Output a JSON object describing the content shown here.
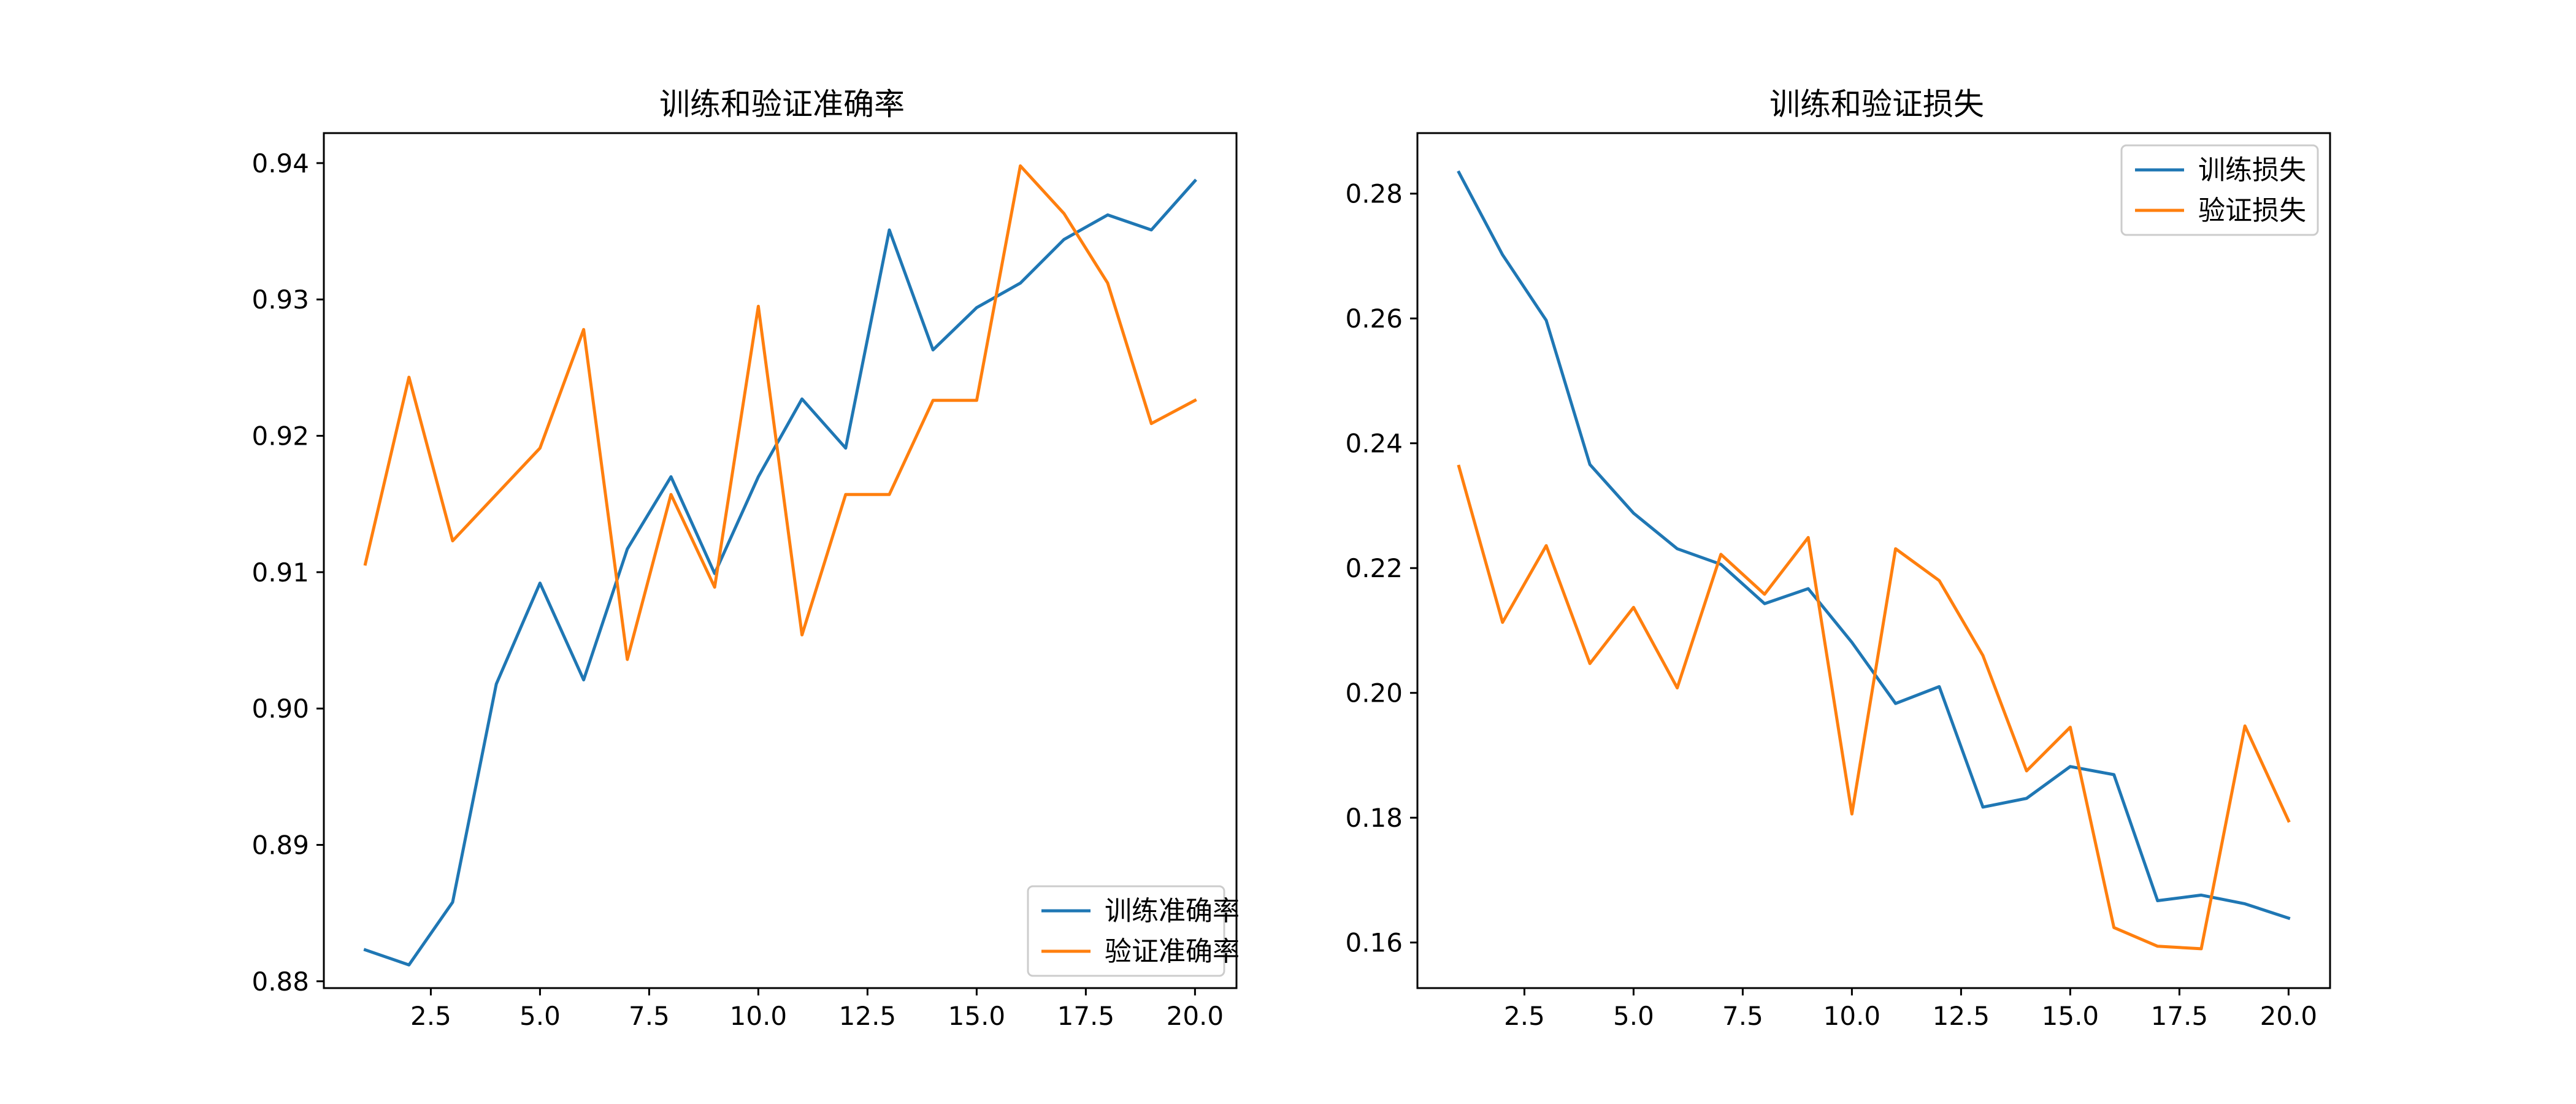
{
  "figure": {
    "background": "#ffffff"
  },
  "chart_data": [
    {
      "type": "line",
      "title": "训练和验证准确率",
      "xlabel": "",
      "ylabel": "",
      "xlim": [
        0.05,
        20.95
      ],
      "ylim": [
        0.8795,
        0.9422
      ],
      "xticks": [
        2.5,
        5.0,
        7.5,
        10.0,
        12.5,
        15.0,
        17.5,
        20.0
      ],
      "xtick_labels": [
        "2.5",
        "5.0",
        "7.5",
        "10.0",
        "12.5",
        "15.0",
        "17.5",
        "20.0"
      ],
      "yticks": [
        0.88,
        0.89,
        0.9,
        0.91,
        0.92,
        0.93,
        0.94
      ],
      "ytick_labels": [
        "0.88",
        "0.89",
        "0.90",
        "0.91",
        "0.92",
        "0.93",
        "0.94"
      ],
      "grid": false,
      "legend_position": "bottom-right",
      "x": [
        1,
        2,
        3,
        4,
        5,
        6,
        7,
        8,
        9,
        10,
        11,
        12,
        13,
        14,
        15,
        16,
        17,
        18,
        19,
        20
      ],
      "series": [
        {
          "name": "训练准确率",
          "color": "#1f77b4",
          "values": [
            0.8823,
            0.8812,
            0.8858,
            0.9018,
            0.9092,
            0.9021,
            0.9117,
            0.917,
            0.9099,
            0.917,
            0.9227,
            0.9191,
            0.9351,
            0.9263,
            0.9294,
            0.9312,
            0.9344,
            0.9362,
            0.9351,
            0.9387
          ]
        },
        {
          "name": "验证准确率",
          "color": "#ff7f0e",
          "values": [
            0.9106,
            0.9243,
            0.9123,
            0.9157,
            0.9191,
            0.9278,
            0.9036,
            0.9157,
            0.9089,
            0.9295,
            0.9054,
            0.9157,
            0.9157,
            0.9226,
            0.9226,
            0.9398,
            0.9363,
            0.9312,
            0.9209,
            0.9226
          ]
        }
      ]
    },
    {
      "type": "line",
      "title": "训练和验证损失",
      "xlabel": "",
      "ylabel": "",
      "xlim": [
        0.05,
        20.95
      ],
      "ylim": [
        0.1527,
        0.2897
      ],
      "xticks": [
        2.5,
        5.0,
        7.5,
        10.0,
        12.5,
        15.0,
        17.5,
        20.0
      ],
      "xtick_labels": [
        "2.5",
        "5.0",
        "7.5",
        "10.0",
        "12.5",
        "15.0",
        "17.5",
        "20.0"
      ],
      "yticks": [
        0.16,
        0.18,
        0.2,
        0.22,
        0.24,
        0.26,
        0.28
      ],
      "ytick_labels": [
        "0.16",
        "0.18",
        "0.20",
        "0.22",
        "0.24",
        "0.26",
        "0.28"
      ],
      "grid": false,
      "legend_position": "top-right",
      "x": [
        1,
        2,
        3,
        4,
        5,
        6,
        7,
        8,
        9,
        10,
        11,
        12,
        13,
        14,
        15,
        16,
        17,
        18,
        19,
        20
      ],
      "series": [
        {
          "name": "训练损失",
          "color": "#1f77b4",
          "values": [
            0.2834,
            0.2702,
            0.2597,
            0.2366,
            0.2288,
            0.2231,
            0.2206,
            0.2143,
            0.2167,
            0.2081,
            0.1983,
            0.201,
            0.1817,
            0.1831,
            0.1882,
            0.1869,
            0.1667,
            0.1676,
            0.1662,
            0.1639
          ]
        },
        {
          "name": "验证损失",
          "color": "#ff7f0e",
          "values": [
            0.2363,
            0.2113,
            0.2236,
            0.2047,
            0.2137,
            0.2008,
            0.2222,
            0.2158,
            0.2249,
            0.1806,
            0.2231,
            0.218,
            0.206,
            0.1875,
            0.1945,
            0.1624,
            0.1594,
            0.159,
            0.1947,
            0.1795
          ]
        }
      ]
    }
  ]
}
